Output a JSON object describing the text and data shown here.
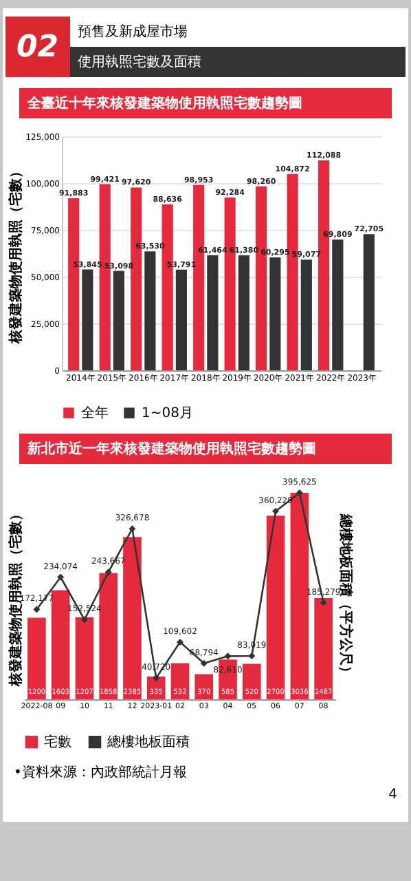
{
  "chart_data": [
    {
      "type": "bar",
      "title": "全臺近十年來核發建築物使用執照宅數趨勢圖",
      "ylabel": "核發建築物使用執照（宅數）",
      "annotations": [
        "預售及新成屋市場",
        "02",
        "使用執照宅數及面積"
      ],
      "categories": [
        "2014年",
        "2015年",
        "2016年",
        "2017年",
        "2018年",
        "2019年",
        "2020年",
        "2021年",
        "2022年",
        "2023年"
      ],
      "series": [
        {
          "name": "全年",
          "color": "#e42a3c",
          "values": [
            91883,
            99421,
            97620,
            88636,
            98953,
            92284,
            98260,
            104872,
            112088,
            null
          ],
          "value_labels": [
            "91,883",
            "99,421",
            "97,620",
            "88,636",
            "98,953",
            "92,284",
            "98,260",
            "104,872",
            "112,088",
            null
          ]
        },
        {
          "name": "1~08月",
          "color": "#333333",
          "values": [
            53845,
            53098,
            63530,
            53791,
            61464,
            61380,
            60295,
            59077,
            69809,
            72705
          ],
          "value_labels": [
            "53,845",
            "53,098",
            "63,530",
            "53,791",
            "61,464",
            "61,380",
            "60,295",
            "59,077",
            "69,809",
            "72,705"
          ]
        }
      ],
      "ylim": [
        0,
        125000
      ],
      "yticks": [
        0,
        {
          "value": 25000,
          "label": "25,000"
        },
        {
          "value": 50000,
          "label": "50,000"
        },
        {
          "value": 75000,
          "label": "75,000"
        },
        {
          "value": 100000,
          "label": "100,000"
        },
        {
          "value": 125000,
          "label": "125,000"
        }
      ],
      "grid": "y",
      "legend": "bottom"
    },
    {
      "type": "bar",
      "title": "新北市近一年來核發建築物使用執照宅數趨勢圖",
      "ylabel": "核發建築物使用執照（宅數）",
      "y2label": "總樓地板面積（平方公尺）",
      "annotations": [
        "•資料來源：內政部統計月報",
        "4"
      ],
      "categories": [
        "2022-08",
        "09",
        "10",
        "11",
        "12",
        "2023-01",
        "02",
        "03",
        "04",
        "05",
        "06",
        "07",
        "08"
      ],
      "series": [
        {
          "name": "宅數",
          "type": "bar",
          "color": "#e42a3c",
          "values": [
            1200,
            1603,
            1207,
            1858,
            2385,
            335,
            532,
            370,
            585,
            520,
            2700,
            3036,
            1487
          ],
          "value_labels": [
            "1200",
            "1603",
            "1207",
            "1858",
            "2385",
            "335",
            "532",
            "370",
            "585",
            "520",
            "2700",
            "3036",
            "1487"
          ]
        },
        {
          "name": "總樓地板面積",
          "type": "line",
          "axis": "y2",
          "color": "#333333",
          "values": [
            172177,
            234074,
            152524,
            243667,
            326678,
            40720,
            109602,
            68794,
            82610,
            83019,
            360229,
            395625,
            185279
          ],
          "value_labels": [
            "172,177",
            "234,074",
            "152,524",
            "243,667",
            "326,678",
            "40,720",
            "109,602",
            "68,794",
            "82,610",
            "83,019",
            "360,229",
            "395,625",
            "185,279"
          ]
        }
      ],
      "tick_labels": "x",
      "legend": "bottom",
      "marker": "diamond"
    }
  ]
}
